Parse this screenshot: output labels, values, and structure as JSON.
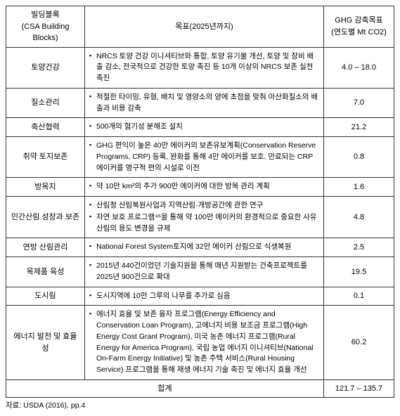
{
  "headers": {
    "col1_line1": "빌딩블록",
    "col1_line2": "(CSA Building Blocks)",
    "col2": "목표(2025년까지)",
    "col3_line1": "GHG 감축목표",
    "col3_line2": "(연도별 Mt CO2)"
  },
  "rows": [
    {
      "name": "토양건강",
      "goals": [
        "NRCS 토양 건강 이니셔티브와 통합, 토양 유기물 개선, 토양 및 장비 배출 감소, 전국적으로 건강한 토양 촉진 등 10개 이상의 NRCS 보존 실천 촉진"
      ],
      "value": "4.0 – 18.0"
    },
    {
      "name": "질소관리",
      "goals": [
        "적절한 타이밍, 유형, 배치 및 영양소의 양에 초점을 맞춰 아산화질소의 배출과 비용 감축"
      ],
      "value": "7.0"
    },
    {
      "name": "축산협력",
      "goals": [
        "500개의 혐기성 분해조 설치"
      ],
      "value": "21.2"
    },
    {
      "name": "취약 토지보존",
      "goals": [
        "GHG 편익이 높은 40만 에이커의 보존유보계획(Conservation Reserve Programs, CRP) 등록, 완화를 통해 4만 에이커를 보호, 만료되는 CRP 에이커를 영구적 편의 시설로 이전"
      ],
      "value": "0.8"
    },
    {
      "name": "방목지",
      "goals": [
        "약 10만 km²의 추가 900만 에이커에 대한 방목 관리 계획"
      ],
      "value": "1.6"
    },
    {
      "name": "민간산림 성장과 보존",
      "goals": [
        "산림청 산림복원사업과 지역산림·개방공간에 관한 연구",
        "자연 보호 프로그램⁴⁶을 통해 약 100만 에이커의 환경적으로 중요한 사유 산림의 용도 변경을 규제"
      ],
      "value": "4.8"
    },
    {
      "name": "연방 산림관리",
      "goals": [
        "National Forest System토지에 32만 에이커 산림으로 식생복원"
      ],
      "value": "2.5"
    },
    {
      "name": "목제품 육성",
      "goals": [
        "2015년 440건이었던 기술지원을 통해 매년 지원받는 건축프로젝트를 2025년 900건으로 확대"
      ],
      "value": "19.5"
    },
    {
      "name": "도시림",
      "goals": [
        "도시지역에 10만 그루의 나무를 추가로 심음"
      ],
      "value": "0.1"
    },
    {
      "name": "에너지 발전 및 효율성",
      "goals": [
        "에너지 효율 및 보존 융자 프로그램(Energy Efficiency and Conservation Loan Program), 고에너지 비용 보조금 프로그램(High Energy Cost Grant Program), 미국 농촌 에너지 프로그램(Rural Energy for America Program), 국립 농업 에너지 이니셔티브(National On-Farm Energy Initiative) 및 농촌 주택 서비스(Rural Housing Service) 프로그램을 통해 재생 에너지 기술 촉진 및 에너지 효율 개선"
      ],
      "value": "60.2"
    }
  ],
  "sum": {
    "label": "합계",
    "value": "121.7 – 135.7"
  },
  "footnote": "자료: USDA (2016), pp.4"
}
